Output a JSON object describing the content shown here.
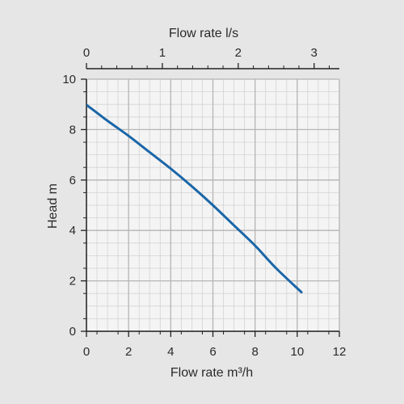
{
  "chart_data": {
    "type": "line",
    "xlabel": "Flow rate m³/h",
    "ylabel": "Head m",
    "x2label": "Flow rate l/s",
    "xlim": [
      0,
      12
    ],
    "ylim": [
      0,
      10
    ],
    "x2lim": [
      0,
      3.333
    ],
    "xticks": [
      0,
      2,
      4,
      6,
      8,
      10,
      12
    ],
    "yticks": [
      0,
      2,
      4,
      6,
      8,
      10
    ],
    "x2ticks": [
      0,
      1,
      2,
      3
    ],
    "grid": true,
    "line_color": "#1a66a8",
    "series": [
      {
        "x": [
          0.05,
          1,
          2,
          3,
          4,
          5,
          6,
          7,
          8,
          9,
          10.2
        ],
        "y": [
          8.95,
          8.35,
          7.75,
          7.1,
          6.45,
          5.75,
          5.0,
          4.2,
          3.4,
          2.5,
          1.55
        ]
      }
    ]
  }
}
